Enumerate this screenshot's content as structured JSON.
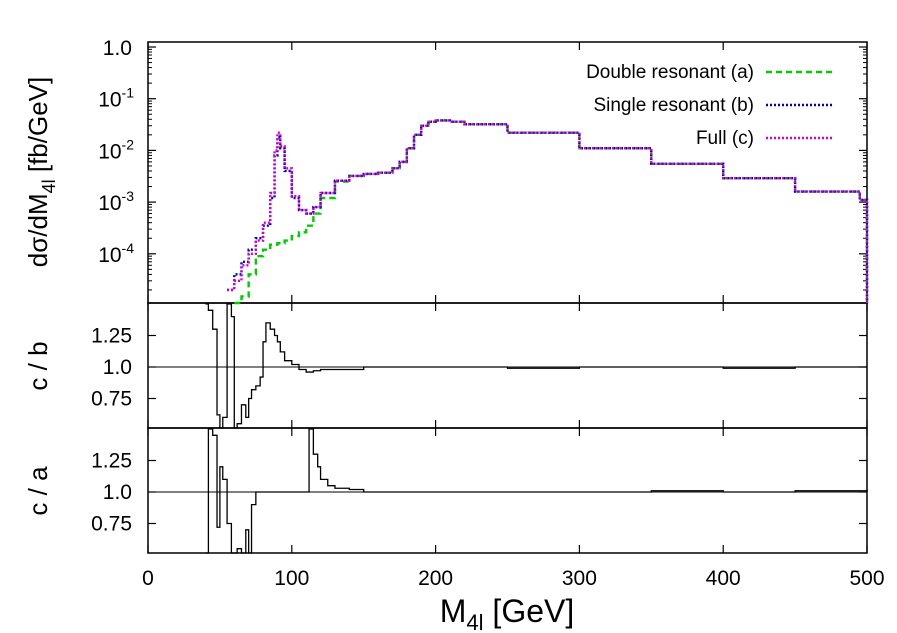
{
  "chart_data": [
    {
      "type": "line",
      "panel": "main",
      "ylabel": "dσ/dM4l [fb/GeV]",
      "ylabel_main": "dσ/dM",
      "ylabel_sub": "4l",
      "ylabel_unit": " [fb/GeV]",
      "yscale": "log",
      "ylim": [
        1e-05,
        1.0
      ],
      "xlim": [
        0,
        500
      ],
      "y_ticks": [
        {
          "value": 1.0,
          "base": "1.0",
          "exp": ""
        },
        {
          "value": 0.1,
          "base": "10",
          "exp": "-1"
        },
        {
          "value": 0.01,
          "base": "10",
          "exp": "-2"
        },
        {
          "value": 0.001,
          "base": "10",
          "exp": "-3"
        },
        {
          "value": 0.0001,
          "base": "10",
          "exp": "-4"
        }
      ],
      "legend_position": "top-right",
      "series": [
        {
          "name": "Double resonant (a)",
          "color": "#00cc00",
          "style": "dashed",
          "x": [
            60,
            65,
            70,
            75,
            80,
            85,
            90,
            95,
            100,
            105,
            110,
            115,
            120,
            130,
            140,
            150,
            160,
            170,
            175,
            180,
            185,
            190,
            195,
            200,
            210,
            220,
            250,
            300,
            350,
            400,
            450,
            495,
            500
          ],
          "y": [
            1e-05,
            1.5e-05,
            4e-05,
            9e-05,
            0.00012,
            0.00015,
            0.00016,
            0.00018,
            0.00022,
            0.00026,
            0.00035,
            0.0006,
            0.0012,
            0.0025,
            0.0032,
            0.0035,
            0.0037,
            0.0045,
            0.006,
            0.011,
            0.02,
            0.03,
            0.036,
            0.038,
            0.036,
            0.032,
            0.022,
            0.011,
            0.0055,
            0.0029,
            0.0016,
            0.0011,
            1e-05
          ]
        },
        {
          "name": "Single resonant (b)",
          "color": "#0000bb",
          "style": "dotted",
          "x": [
            55,
            60,
            65,
            70,
            75,
            80,
            85,
            88,
            90,
            92,
            95,
            100,
            105,
            110,
            115,
            120,
            130,
            140,
            150,
            160,
            170,
            175,
            180,
            185,
            190,
            195,
            200,
            210,
            220,
            250,
            300,
            350,
            400,
            450,
            495,
            500
          ],
          "y": [
            2e-05,
            4e-05,
            7e-05,
            0.00012,
            0.0002,
            0.00035,
            0.0012,
            0.008,
            0.018,
            0.011,
            0.004,
            0.0012,
            0.0007,
            0.0006,
            0.0008,
            0.0015,
            0.0026,
            0.0032,
            0.0035,
            0.0037,
            0.0045,
            0.006,
            0.011,
            0.02,
            0.03,
            0.036,
            0.038,
            0.036,
            0.032,
            0.022,
            0.011,
            0.0055,
            0.0029,
            0.0016,
            0.0011,
            1e-05
          ]
        },
        {
          "name": "Full (c)",
          "color": "#cc00cc",
          "style": "dotted",
          "x": [
            55,
            60,
            65,
            70,
            75,
            80,
            85,
            88,
            90,
            92,
            95,
            100,
            105,
            110,
            115,
            120,
            130,
            140,
            150,
            160,
            170,
            175,
            180,
            185,
            190,
            195,
            200,
            210,
            220,
            250,
            300,
            350,
            400,
            450,
            495,
            500
          ],
          "y": [
            2e-05,
            3e-05,
            6e-05,
            0.0001,
            0.00018,
            0.0004,
            0.0015,
            0.01,
            0.022,
            0.012,
            0.0045,
            0.0013,
            0.0007,
            0.0006,
            0.0008,
            0.0015,
            0.0026,
            0.0032,
            0.0035,
            0.0037,
            0.0045,
            0.006,
            0.011,
            0.02,
            0.03,
            0.036,
            0.038,
            0.036,
            0.032,
            0.022,
            0.011,
            0.0055,
            0.0029,
            0.0016,
            0.0011,
            1e-05
          ]
        }
      ]
    },
    {
      "type": "line",
      "panel": "ratio-cb",
      "ylabel": "c / b",
      "ylim": [
        0.5,
        1.5
      ],
      "xlim": [
        0,
        500
      ],
      "y_ticks": [
        "1.25",
        "1.0",
        "0.75"
      ],
      "reference_line": 1.0,
      "series": [
        {
          "name": "",
          "color": "#000000",
          "x": [
            40,
            42,
            45,
            48,
            50,
            52,
            55,
            58,
            60,
            62,
            65,
            68,
            70,
            72,
            75,
            78,
            80,
            82,
            85,
            88,
            90,
            92,
            95,
            100,
            105,
            110,
            115,
            120,
            130,
            150,
            200,
            250,
            300,
            350,
            400,
            450,
            500
          ],
          "y": [
            1.5,
            1.45,
            1.3,
            0.62,
            0.5,
            0.6,
            1.5,
            1.4,
            0.5,
            0.55,
            0.7,
            0.6,
            0.75,
            0.82,
            0.85,
            0.92,
            1.2,
            1.35,
            1.3,
            1.25,
            1.2,
            1.12,
            1.05,
            1.02,
            0.98,
            0.96,
            0.97,
            0.98,
            0.98,
            1.0,
            1.0,
            0.99,
            1.0,
            1.0,
            0.99,
            1.0,
            1.0
          ]
        }
      ]
    },
    {
      "type": "line",
      "panel": "ratio-ca",
      "ylabel": "c / a",
      "ylim": [
        0.5,
        1.5
      ],
      "xlim": [
        0,
        500
      ],
      "y_ticks": [
        "1.25",
        "1.0",
        "0.75"
      ],
      "reference_line": 1.0,
      "series": [
        {
          "name": "",
          "color": "#000000",
          "x": [
            40,
            42,
            45,
            48,
            50,
            52,
            55,
            58,
            60,
            62,
            65,
            68,
            70,
            72,
            75,
            80,
            90,
            100,
            110,
            112,
            115,
            118,
            120,
            125,
            130,
            140,
            150,
            200,
            250,
            300,
            350,
            400,
            450,
            500
          ],
          "y": [
            0.5,
            1.5,
            1.45,
            0.72,
            1.2,
            1.1,
            0.75,
            0.5,
            0.5,
            0.55,
            0.5,
            0.7,
            0.5,
            0.9,
            1.0,
            1.0,
            1.0,
            1.0,
            1.0,
            1.5,
            1.3,
            1.2,
            1.1,
            1.05,
            1.03,
            1.02,
            1.0,
            1.0,
            1.0,
            1.0,
            1.01,
            1.0,
            1.01,
            1.02
          ]
        }
      ]
    }
  ],
  "x_ticks": [
    "0",
    "100",
    "200",
    "300",
    "400",
    "500"
  ],
  "xlabel_main": "M",
  "xlabel_sub": "4l",
  "xlabel_unit": " [GeV]"
}
